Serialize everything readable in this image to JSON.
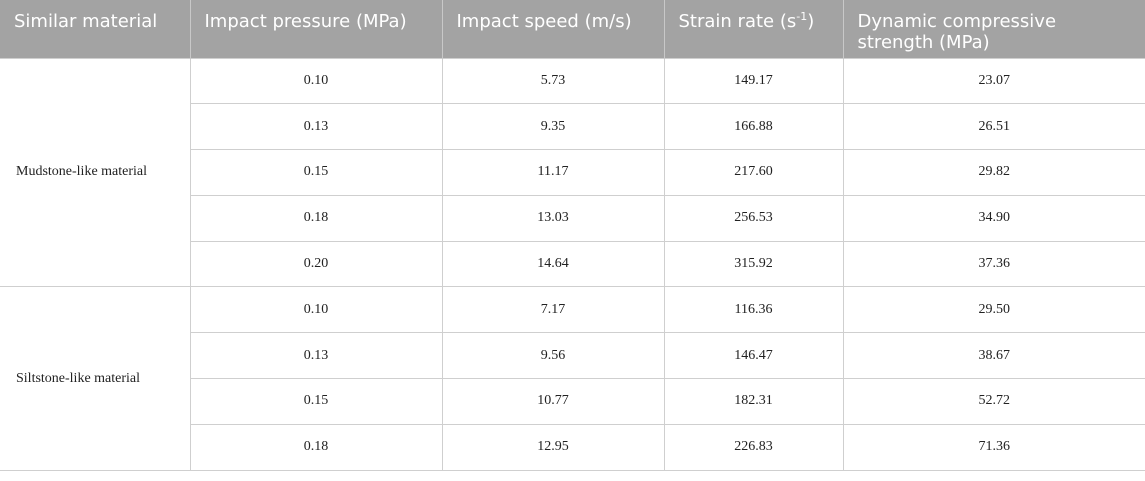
{
  "headers": {
    "material": "Similar material",
    "pressure": "Impact pressure (MPa)",
    "speed": "Impact speed (m/s)",
    "strain_base": "Strain rate (s",
    "strain_sup": "-1",
    "strain_end": ")",
    "strength": "Dynamic compressive strength (MPa)"
  },
  "groups": [
    {
      "material": "Mudstone-like material",
      "rows": [
        {
          "pressure": "0.10",
          "speed": "5.73",
          "strain": "149.17",
          "strength": "23.07"
        },
        {
          "pressure": "0.13",
          "speed": "9.35",
          "strain": "166.88",
          "strength": "26.51"
        },
        {
          "pressure": "0.15",
          "speed": "11.17",
          "strain": "217.60",
          "strength": "29.82"
        },
        {
          "pressure": "0.18",
          "speed": "13.03",
          "strain": "256.53",
          "strength": "34.90"
        },
        {
          "pressure": "0.20",
          "speed": "14.64",
          "strain": "315.92",
          "strength": "37.36"
        }
      ]
    },
    {
      "material": "Siltstone-like material",
      "rows": [
        {
          "pressure": "0.10",
          "speed": "7.17",
          "strain": "116.36",
          "strength": "29.50"
        },
        {
          "pressure": "0.13",
          "speed": "9.56",
          "strain": "146.47",
          "strength": "38.67"
        },
        {
          "pressure": "0.15",
          "speed": "10.77",
          "strain": "182.31",
          "strength": "52.72"
        },
        {
          "pressure": "0.18",
          "speed": "12.95",
          "strain": "226.83",
          "strength": "71.36"
        }
      ]
    }
  ]
}
